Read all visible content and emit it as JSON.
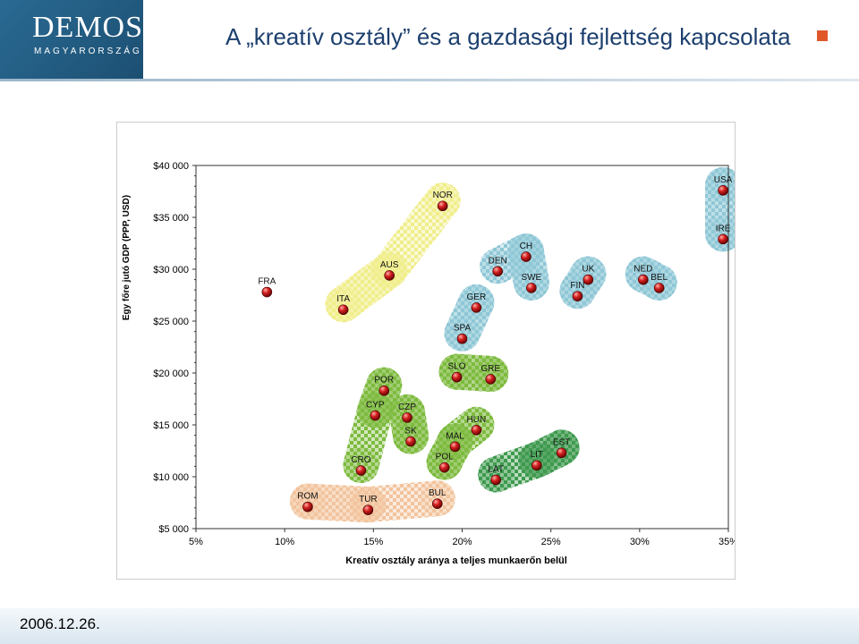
{
  "logo": {
    "main": "DEMOS",
    "sub": "MAGYARORSZÁG"
  },
  "slide": {
    "title": "A „kreatív osztály” és a gazdasági fejlettség kapcsolata",
    "date": "2006.12.26."
  },
  "colors": {
    "title": "#1c3f6e",
    "bullet": "#e0582a",
    "marker": "#c01818"
  },
  "chart_data": {
    "type": "scatter",
    "xlabel": "Kreatív osztály aránya a teljes munkaerőn belül",
    "ylabel": "Egy főre jutó GDP (PPP, USD)",
    "xlim": [
      5,
      35
    ],
    "ylim": [
      5000,
      40000
    ],
    "x_ticks": [
      "5%",
      "10%",
      "15%",
      "20%",
      "25%",
      "30%",
      "35%"
    ],
    "y_ticks": [
      "$5 000",
      "$10 000",
      "$15 000",
      "$20 000",
      "$25 000",
      "$30 000",
      "$35 000",
      "$40 000"
    ],
    "points": [
      {
        "label": "USA",
        "x": 34.7,
        "y": 37600
      },
      {
        "label": "NOR",
        "x": 18.9,
        "y": 36100
      },
      {
        "label": "IRE",
        "x": 34.7,
        "y": 32900
      },
      {
        "label": "CH",
        "x": 23.6,
        "y": 31200
      },
      {
        "label": "DEN",
        "x": 22.0,
        "y": 29800
      },
      {
        "label": "AUS",
        "x": 15.9,
        "y": 29400
      },
      {
        "label": "UK",
        "x": 27.1,
        "y": 29000
      },
      {
        "label": "NED",
        "x": 30.2,
        "y": 29000
      },
      {
        "label": "SWE",
        "x": 23.9,
        "y": 28200
      },
      {
        "label": "BEL",
        "x": 31.1,
        "y": 28200
      },
      {
        "label": "FRA",
        "x": 9.0,
        "y": 27800
      },
      {
        "label": "FIN",
        "x": 26.5,
        "y": 27400
      },
      {
        "label": "GER",
        "x": 20.8,
        "y": 26300
      },
      {
        "label": "ITA",
        "x": 13.3,
        "y": 26100
      },
      {
        "label": "SPA",
        "x": 20.0,
        "y": 23300
      },
      {
        "label": "SLO",
        "x": 19.7,
        "y": 19600
      },
      {
        "label": "GRE",
        "x": 21.6,
        "y": 19400
      },
      {
        "label": "POR",
        "x": 15.6,
        "y": 18300
      },
      {
        "label": "CYP",
        "x": 15.1,
        "y": 15900
      },
      {
        "label": "CZP",
        "x": 16.9,
        "y": 15700
      },
      {
        "label": "HUN",
        "x": 20.8,
        "y": 14500
      },
      {
        "label": "SK",
        "x": 17.1,
        "y": 13400
      },
      {
        "label": "MAL",
        "x": 19.6,
        "y": 12900
      },
      {
        "label": "EST",
        "x": 25.6,
        "y": 12300
      },
      {
        "label": "LIT",
        "x": 24.2,
        "y": 11100
      },
      {
        "label": "POL",
        "x": 19.0,
        "y": 10900
      },
      {
        "label": "CRO",
        "x": 14.3,
        "y": 10600
      },
      {
        "label": "LAT",
        "x": 21.9,
        "y": 9700
      },
      {
        "label": "BUL",
        "x": 18.6,
        "y": 7400
      },
      {
        "label": "ROM",
        "x": 11.3,
        "y": 7100
      },
      {
        "label": "TUR",
        "x": 14.7,
        "y": 6800
      }
    ],
    "groups": [
      {
        "color": "#8fc7d6",
        "members": [
          "USA",
          "IRE",
          "CH",
          "DEN",
          "UK",
          "NED",
          "SWE",
          "BEL",
          "FIN",
          "GER",
          "SPA"
        ]
      },
      {
        "color": "#f0ee8a",
        "members": [
          "NOR",
          "AUS",
          "ITA"
        ]
      },
      {
        "color": "#7dbb3e",
        "members": [
          "SLO",
          "GRE",
          "POR",
          "CYP",
          "CZP",
          "HUN",
          "SK",
          "MAL",
          "POL",
          "CRO"
        ]
      },
      {
        "color": "#3e9a4e",
        "members": [
          "EST",
          "LIT",
          "LAT"
        ]
      },
      {
        "color": "#f2c49e",
        "members": [
          "BUL",
          "ROM",
          "TUR"
        ]
      }
    ]
  }
}
